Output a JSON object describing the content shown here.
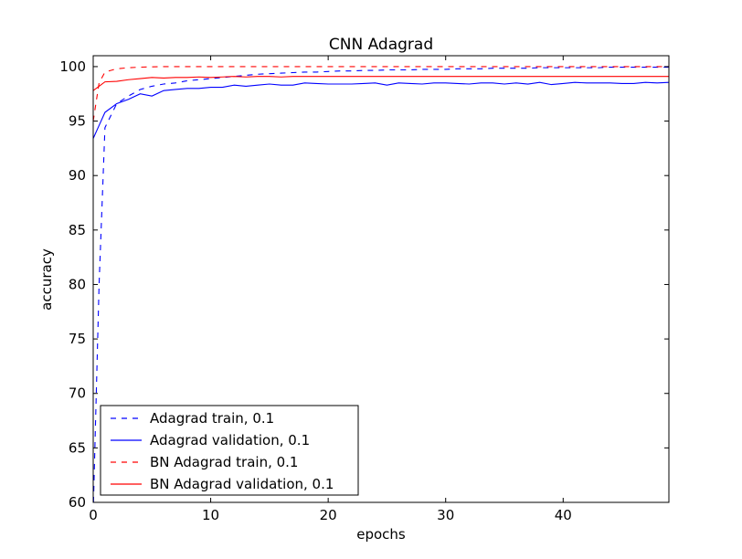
{
  "chart_data": {
    "type": "line",
    "title": "CNN Adagrad",
    "xlabel": "epochs",
    "ylabel": "accuracy",
    "xlim": [
      0,
      49
    ],
    "ylim": [
      60,
      101
    ],
    "xticks": [
      0,
      10,
      20,
      30,
      40
    ],
    "yticks": [
      60,
      65,
      70,
      75,
      80,
      85,
      90,
      95,
      100
    ],
    "grid": false,
    "legend_position": "lower-left",
    "x": [
      0,
      0.5,
      1,
      2,
      3,
      4,
      5,
      6,
      7,
      8,
      9,
      10,
      11,
      12,
      13,
      14,
      15,
      16,
      17,
      18,
      19,
      20,
      21,
      22,
      23,
      24,
      25,
      26,
      27,
      28,
      29,
      30,
      31,
      32,
      33,
      34,
      35,
      36,
      37,
      38,
      39,
      40,
      41,
      42,
      43,
      44,
      45,
      46,
      47,
      48,
      49
    ],
    "series": [
      {
        "name": "Adagrad train, 0.1",
        "color": "#0000ff",
        "style": "dashed",
        "values": [
          59.0,
          80.0,
          94.4,
          96.6,
          97.3,
          97.9,
          98.2,
          98.4,
          98.5,
          98.7,
          98.8,
          98.9,
          99.0,
          99.1,
          99.2,
          99.3,
          99.35,
          99.4,
          99.45,
          99.5,
          99.5,
          99.55,
          99.6,
          99.6,
          99.65,
          99.65,
          99.7,
          99.7,
          99.7,
          99.75,
          99.75,
          99.75,
          99.8,
          99.8,
          99.8,
          99.85,
          99.85,
          99.85,
          99.85,
          99.9,
          99.9,
          99.9,
          99.9,
          99.9,
          99.9,
          99.95,
          99.95,
          99.95,
          99.95,
          99.95,
          99.95
        ]
      },
      {
        "name": "Adagrad validation, 0.1",
        "color": "#0000ff",
        "style": "solid",
        "values": [
          93.4,
          94.6,
          95.8,
          96.6,
          97.0,
          97.5,
          97.3,
          97.8,
          97.9,
          98.0,
          98.0,
          98.1,
          98.1,
          98.3,
          98.2,
          98.3,
          98.4,
          98.3,
          98.3,
          98.5,
          98.45,
          98.4,
          98.4,
          98.4,
          98.45,
          98.5,
          98.3,
          98.5,
          98.45,
          98.4,
          98.5,
          98.5,
          98.45,
          98.4,
          98.5,
          98.5,
          98.4,
          98.5,
          98.4,
          98.55,
          98.35,
          98.45,
          98.55,
          98.5,
          98.5,
          98.5,
          98.45,
          98.45,
          98.55,
          98.5,
          98.55
        ]
      },
      {
        "name": "BN Adagrad train, 0.1",
        "color": "#ff0000",
        "style": "dashed",
        "values": [
          95.0,
          98.5,
          99.5,
          99.8,
          99.9,
          99.95,
          99.98,
          100.0,
          100.0,
          100.0,
          100.0,
          100.0,
          100.0,
          100.0,
          100.0,
          100.0,
          100.0,
          100.0,
          100.0,
          100.0,
          100.0,
          100.0,
          100.0,
          100.0,
          100.0,
          100.0,
          100.0,
          100.0,
          100.0,
          100.0,
          100.0,
          100.0,
          100.0,
          100.0,
          100.0,
          100.0,
          100.0,
          100.0,
          100.0,
          100.0,
          100.0,
          100.0,
          100.0,
          100.0,
          100.0,
          100.0,
          100.0,
          100.0,
          100.0,
          100.0,
          100.0
        ]
      },
      {
        "name": "BN Adagrad validation, 0.1",
        "color": "#ff0000",
        "style": "solid",
        "values": [
          97.8,
          98.2,
          98.6,
          98.65,
          98.8,
          98.9,
          99.0,
          98.95,
          99.0,
          99.0,
          99.05,
          99.0,
          99.05,
          99.1,
          99.05,
          99.1,
          99.1,
          99.05,
          99.1,
          99.1,
          99.1,
          99.1,
          99.1,
          99.1,
          99.1,
          99.1,
          99.1,
          99.1,
          99.1,
          99.1,
          99.1,
          99.1,
          99.1,
          99.1,
          99.1,
          99.1,
          99.1,
          99.1,
          99.1,
          99.1,
          99.1,
          99.1,
          99.1,
          99.1,
          99.1,
          99.1,
          99.1,
          99.1,
          99.1,
          99.1,
          99.1
        ]
      }
    ]
  }
}
